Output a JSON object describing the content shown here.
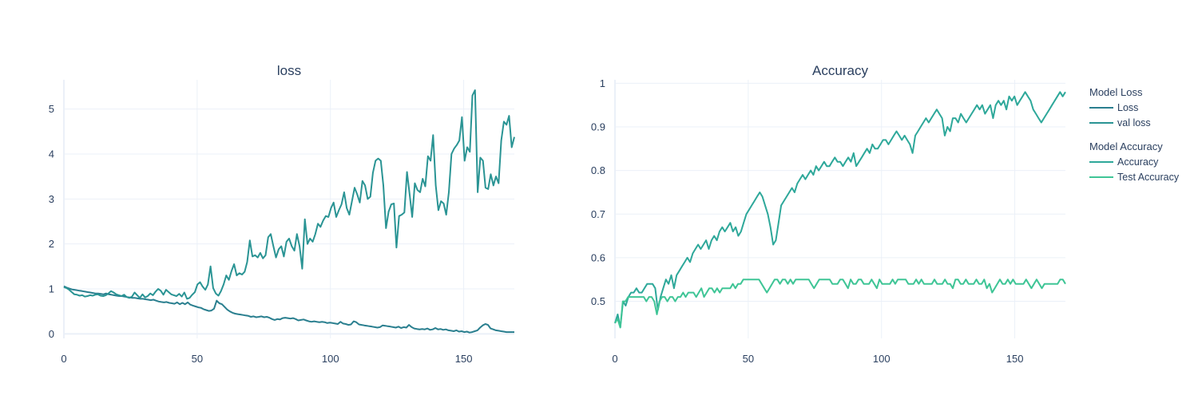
{
  "chart_data": [
    {
      "type": "line",
      "title": "loss",
      "xlim": [
        0,
        169
      ],
      "ylim": [
        -0.1,
        5.65
      ],
      "x_ticks": [
        0,
        50,
        100,
        150
      ],
      "y_ticks": [
        0,
        1,
        2,
        3,
        4,
        5
      ],
      "legend_group": "Model Loss",
      "series": [
        {
          "name": "Loss",
          "color": "#2a7f8f",
          "values": [
            1.06,
            1.03,
            1.01,
            0.99,
            0.98,
            0.97,
            0.96,
            0.95,
            0.94,
            0.93,
            0.92,
            0.91,
            0.9,
            0.9,
            0.89,
            0.88,
            0.9,
            0.88,
            0.87,
            0.86,
            0.85,
            0.84,
            0.84,
            0.83,
            0.82,
            0.81,
            0.8,
            0.8,
            0.79,
            0.78,
            0.78,
            0.77,
            0.76,
            0.75,
            0.76,
            0.74,
            0.72,
            0.71,
            0.7,
            0.71,
            0.69,
            0.68,
            0.67,
            0.7,
            0.66,
            0.69,
            0.66,
            0.7,
            0.65,
            0.63,
            0.61,
            0.59,
            0.58,
            0.55,
            0.53,
            0.51,
            0.52,
            0.56,
            0.74,
            0.68,
            0.66,
            0.6,
            0.54,
            0.5,
            0.47,
            0.45,
            0.44,
            0.43,
            0.42,
            0.41,
            0.4,
            0.38,
            0.39,
            0.37,
            0.38,
            0.39,
            0.37,
            0.38,
            0.36,
            0.33,
            0.31,
            0.33,
            0.32,
            0.35,
            0.36,
            0.35,
            0.34,
            0.35,
            0.33,
            0.3,
            0.31,
            0.32,
            0.3,
            0.28,
            0.27,
            0.28,
            0.27,
            0.26,
            0.27,
            0.26,
            0.24,
            0.25,
            0.24,
            0.23,
            0.22,
            0.27,
            0.23,
            0.22,
            0.2,
            0.21,
            0.28,
            0.26,
            0.21,
            0.2,
            0.19,
            0.18,
            0.17,
            0.16,
            0.15,
            0.14,
            0.15,
            0.19,
            0.18,
            0.17,
            0.16,
            0.15,
            0.14,
            0.16,
            0.13,
            0.15,
            0.14,
            0.2,
            0.15,
            0.12,
            0.11,
            0.1,
            0.11,
            0.1,
            0.12,
            0.09,
            0.1,
            0.13,
            0.1,
            0.11,
            0.09,
            0.1,
            0.08,
            0.07,
            0.06,
            0.08,
            0.05,
            0.06,
            0.04,
            0.05,
            0.03,
            0.04,
            0.06,
            0.08,
            0.14,
            0.19,
            0.22,
            0.2,
            0.12,
            0.1,
            0.08,
            0.07,
            0.06,
            0.05,
            0.04,
            0.04,
            0.04,
            0.04
          ]
        },
        {
          "name": "val loss",
          "color": "#2a9494",
          "values": [
            1.04,
            1.02,
            0.98,
            0.93,
            0.88,
            0.87,
            0.85,
            0.86,
            0.83,
            0.84,
            0.86,
            0.85,
            0.87,
            0.88,
            0.85,
            0.84,
            0.86,
            0.9,
            0.95,
            0.92,
            0.88,
            0.86,
            0.84,
            0.87,
            0.82,
            0.8,
            0.83,
            0.92,
            0.86,
            0.8,
            0.88,
            0.81,
            0.84,
            0.9,
            0.86,
            0.94,
            1.0,
            0.96,
            0.87,
            0.98,
            0.93,
            0.88,
            0.86,
            0.84,
            0.89,
            0.83,
            0.92,
            0.78,
            0.8,
            0.87,
            0.93,
            1.1,
            1.15,
            1.05,
            0.98,
            1.1,
            1.5,
            1.02,
            0.9,
            0.85,
            0.95,
            1.1,
            1.3,
            1.2,
            1.4,
            1.55,
            1.3,
            1.35,
            1.32,
            1.38,
            1.6,
            2.08,
            1.72,
            1.75,
            1.7,
            1.8,
            1.68,
            1.75,
            2.15,
            2.22,
            1.95,
            1.7,
            1.88,
            1.95,
            1.72,
            2.05,
            2.12,
            1.95,
            1.85,
            2.22,
            1.95,
            1.45,
            2.55,
            2.0,
            2.12,
            2.05,
            2.22,
            2.45,
            2.38,
            2.52,
            2.62,
            2.6,
            2.8,
            2.92,
            2.6,
            2.75,
            2.88,
            3.15,
            2.8,
            2.65,
            2.95,
            3.25,
            3.1,
            2.92,
            3.4,
            3.3,
            3.0,
            3.05,
            3.58,
            3.85,
            3.9,
            3.85,
            3.3,
            2.35,
            2.72,
            2.88,
            2.9,
            1.92,
            2.62,
            2.65,
            2.7,
            3.6,
            3.12,
            2.6,
            3.35,
            3.2,
            3.15,
            3.45,
            3.28,
            3.95,
            3.85,
            4.42,
            3.3,
            2.75,
            2.95,
            2.9,
            2.65,
            3.15,
            4.0,
            4.12,
            4.2,
            4.3,
            4.82,
            3.85,
            4.15,
            4.05,
            5.3,
            5.42,
            3.15,
            3.92,
            3.85,
            3.25,
            3.22,
            3.55,
            3.3,
            3.5,
            3.35,
            4.3,
            4.72,
            4.65,
            4.85,
            4.15,
            4.38
          ]
        }
      ]
    },
    {
      "type": "line",
      "title": "Accuracy",
      "xlim": [
        0,
        169
      ],
      "ylim": [
        0.415,
        1.008
      ],
      "x_ticks": [
        0,
        50,
        100,
        150
      ],
      "y_ticks": [
        "0.5",
        "0.6",
        "0.7",
        "0.8",
        "0.9",
        "1"
      ],
      "legend_group": "Model Accuracy",
      "series": [
        {
          "name": "Accuracy",
          "color": "#2ea89a",
          "values": [
            0.45,
            0.47,
            0.44,
            0.5,
            0.49,
            0.51,
            0.52,
            0.52,
            0.53,
            0.52,
            0.52,
            0.53,
            0.54,
            0.54,
            0.54,
            0.53,
            0.48,
            0.51,
            0.53,
            0.55,
            0.54,
            0.56,
            0.53,
            0.56,
            0.57,
            0.58,
            0.59,
            0.6,
            0.59,
            0.61,
            0.62,
            0.63,
            0.62,
            0.63,
            0.64,
            0.62,
            0.64,
            0.65,
            0.64,
            0.66,
            0.67,
            0.66,
            0.67,
            0.68,
            0.66,
            0.67,
            0.65,
            0.66,
            0.68,
            0.7,
            0.71,
            0.72,
            0.73,
            0.74,
            0.75,
            0.74,
            0.72,
            0.7,
            0.67,
            0.63,
            0.64,
            0.68,
            0.72,
            0.73,
            0.74,
            0.75,
            0.76,
            0.75,
            0.77,
            0.78,
            0.79,
            0.78,
            0.79,
            0.8,
            0.79,
            0.81,
            0.8,
            0.81,
            0.82,
            0.81,
            0.81,
            0.82,
            0.83,
            0.82,
            0.82,
            0.81,
            0.82,
            0.83,
            0.82,
            0.84,
            0.81,
            0.82,
            0.83,
            0.84,
            0.85,
            0.84,
            0.86,
            0.85,
            0.85,
            0.86,
            0.87,
            0.87,
            0.86,
            0.87,
            0.88,
            0.89,
            0.88,
            0.87,
            0.88,
            0.87,
            0.86,
            0.84,
            0.88,
            0.89,
            0.9,
            0.91,
            0.92,
            0.91,
            0.92,
            0.93,
            0.94,
            0.93,
            0.92,
            0.88,
            0.9,
            0.89,
            0.92,
            0.92,
            0.91,
            0.93,
            0.92,
            0.91,
            0.92,
            0.93,
            0.94,
            0.95,
            0.94,
            0.95,
            0.93,
            0.94,
            0.95,
            0.92,
            0.95,
            0.96,
            0.95,
            0.96,
            0.94,
            0.97,
            0.96,
            0.97,
            0.95,
            0.96,
            0.97,
            0.98,
            0.97,
            0.96,
            0.94,
            0.93,
            0.92,
            0.91,
            0.92,
            0.93,
            0.94,
            0.95,
            0.96,
            0.97,
            0.98,
            0.97,
            0.98
          ]
        },
        {
          "name": "Test Accuracy",
          "color": "#3fc596",
          "values": [
            0.45,
            0.46,
            0.44,
            0.5,
            0.5,
            0.51,
            0.51,
            0.51,
            0.51,
            0.51,
            0.51,
            0.51,
            0.5,
            0.51,
            0.51,
            0.5,
            0.47,
            0.5,
            0.51,
            0.51,
            0.5,
            0.51,
            0.51,
            0.5,
            0.51,
            0.51,
            0.52,
            0.51,
            0.52,
            0.52,
            0.52,
            0.51,
            0.52,
            0.53,
            0.51,
            0.52,
            0.53,
            0.53,
            0.52,
            0.53,
            0.52,
            0.53,
            0.53,
            0.53,
            0.53,
            0.54,
            0.53,
            0.54,
            0.54,
            0.55,
            0.55,
            0.55,
            0.55,
            0.55,
            0.55,
            0.55,
            0.54,
            0.53,
            0.52,
            0.53,
            0.54,
            0.55,
            0.55,
            0.54,
            0.55,
            0.55,
            0.54,
            0.55,
            0.54,
            0.55,
            0.55,
            0.55,
            0.55,
            0.55,
            0.55,
            0.54,
            0.53,
            0.54,
            0.55,
            0.55,
            0.55,
            0.55,
            0.55,
            0.54,
            0.54,
            0.54,
            0.55,
            0.55,
            0.54,
            0.53,
            0.55,
            0.54,
            0.54,
            0.55,
            0.55,
            0.54,
            0.54,
            0.54,
            0.55,
            0.54,
            0.53,
            0.55,
            0.54,
            0.54,
            0.54,
            0.54,
            0.55,
            0.54,
            0.55,
            0.55,
            0.55,
            0.55,
            0.54,
            0.54,
            0.54,
            0.55,
            0.54,
            0.55,
            0.54,
            0.54,
            0.54,
            0.54,
            0.55,
            0.54,
            0.54,
            0.54,
            0.55,
            0.54,
            0.54,
            0.53,
            0.55,
            0.55,
            0.54,
            0.54,
            0.55,
            0.54,
            0.54,
            0.54,
            0.55,
            0.54,
            0.54,
            0.55,
            0.53,
            0.54,
            0.52,
            0.53,
            0.54,
            0.55,
            0.54,
            0.54,
            0.55,
            0.54,
            0.55,
            0.54,
            0.54,
            0.54,
            0.54,
            0.55,
            0.54,
            0.53,
            0.54,
            0.55,
            0.54,
            0.53,
            0.54,
            0.54,
            0.54,
            0.54,
            0.54,
            0.54,
            0.55,
            0.55,
            0.54
          ]
        }
      ]
    }
  ]
}
